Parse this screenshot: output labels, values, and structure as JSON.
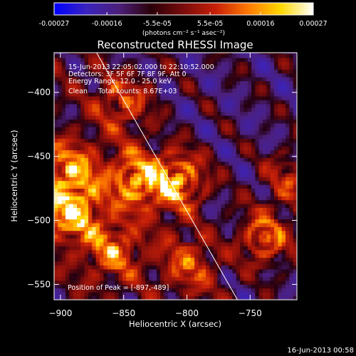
{
  "chart_data": {
    "type": "heatmap",
    "title": "Reconstructed RHESSI Image",
    "xlabel": "Heliocentric X (arcsec)",
    "ylabel": "Heliocentric Y (arcsec)",
    "xlim": [
      -905,
      -713
    ],
    "ylim": [
      -562,
      -369
    ],
    "xticks": [
      -900,
      -850,
      -800,
      -750
    ],
    "yticks": [
      -550,
      -500,
      -450,
      -400
    ],
    "colorbar": {
      "min": -0.00027,
      "max": 0.00027,
      "tick_values": [
        -0.00027,
        -0.00016,
        -5.5e-05,
        5.5e-05,
        0.00016,
        0.00027
      ],
      "tick_labels": [
        "-0.00027",
        "-0.00016",
        "-5.5e-05",
        "5.5e-05",
        "0.00016",
        "0.00027"
      ],
      "units_label": "(photons cm⁻² s⁻¹ asec⁻²)",
      "colors": [
        "#0000ff",
        "#3a23bf",
        "#4c1f7a",
        "#2a0008",
        "#7a0c0c",
        "#c82008",
        "#ff7a00",
        "#ffd800",
        "#ffffff"
      ]
    },
    "annotations": [
      "15-Jun-2013 22:05:02.000 to 22:10:52.000",
      "Detectors: 3F 5F 6F 7F 8F 9F, Att 0",
      "Energy Range: 12.0 - 25.0 keV",
      "Clean     Total counts: 8.67E+03"
    ],
    "peak_label": "Position of Peak = [-897,-489]",
    "peak": {
      "x": -897,
      "y": -489
    },
    "limb_line": {
      "x": [
        -872,
        -760
      ],
      "y": [
        -368,
        -562
      ]
    },
    "bright_regions": [
      {
        "x": -842,
        "y": -470,
        "intensity": 0.85
      },
      {
        "x": -893,
        "y": -495,
        "intensity": 1.0
      },
      {
        "x": -893,
        "y": -462,
        "intensity": 0.8
      },
      {
        "x": -808,
        "y": -470,
        "intensity": 0.95
      },
      {
        "x": -860,
        "y": -525,
        "intensity": 0.7
      },
      {
        "x": -740,
        "y": -515,
        "intensity": 0.75
      },
      {
        "x": -850,
        "y": -408,
        "intensity": 0.6
      },
      {
        "x": -800,
        "y": -535,
        "intensity": 0.55
      },
      {
        "x": -720,
        "y": -470,
        "intensity": 0.5
      }
    ]
  },
  "timestamp": "16-Jun-2013 00:58"
}
